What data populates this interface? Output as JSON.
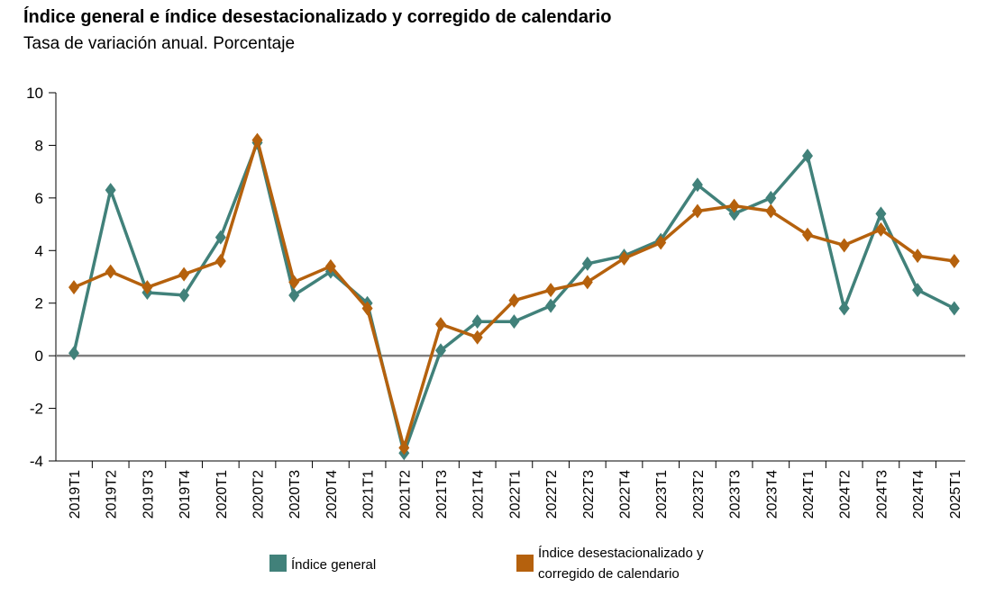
{
  "chart_data": {
    "type": "line",
    "title": "Índice general e índice desestacionalizado y corregido de calendario",
    "subtitle": "Tasa de variación anual. Porcentaje",
    "categories": [
      "2019T1",
      "2019T2",
      "2019T3",
      "2019T4",
      "2020T1",
      "2020T2",
      "2020T3",
      "2020T4",
      "2021T1",
      "2021T2",
      "2021T3",
      "2021T4",
      "2022T1",
      "2022T2",
      "2022T3",
      "2022T4",
      "2023T1",
      "2023T2",
      "2023T3",
      "2023T4",
      "2024T1",
      "2024T2",
      "2024T3",
      "2024T4",
      "2025T1"
    ],
    "ylim": [
      -4,
      10
    ],
    "yticks": [
      10,
      8,
      6,
      4,
      2,
      0,
      -2,
      -4
    ],
    "legend_position": "bottom",
    "series": [
      {
        "name": "Índice general",
        "color": "#41817a",
        "values": [
          0.1,
          6.3,
          2.4,
          2.3,
          4.5,
          8.1,
          2.3,
          3.2,
          2.0,
          -3.7,
          0.2,
          1.3,
          1.3,
          1.9,
          3.5,
          3.8,
          4.4,
          6.5,
          5.4,
          6.0,
          7.6,
          1.8,
          5.4,
          2.5,
          1.8
        ]
      },
      {
        "name": "Índice desestacionalizado y corregido de calendario",
        "name_lines": [
          "Índice desestacionalizado y",
          "corregido de calendario"
        ],
        "color": "#b5610d",
        "values": [
          2.6,
          3.2,
          2.6,
          3.1,
          3.6,
          8.2,
          2.8,
          3.4,
          1.8,
          -3.5,
          1.2,
          0.7,
          2.1,
          2.5,
          2.8,
          3.7,
          4.3,
          5.5,
          5.7,
          5.5,
          4.6,
          4.2,
          4.8,
          3.8,
          3.6
        ]
      }
    ]
  }
}
